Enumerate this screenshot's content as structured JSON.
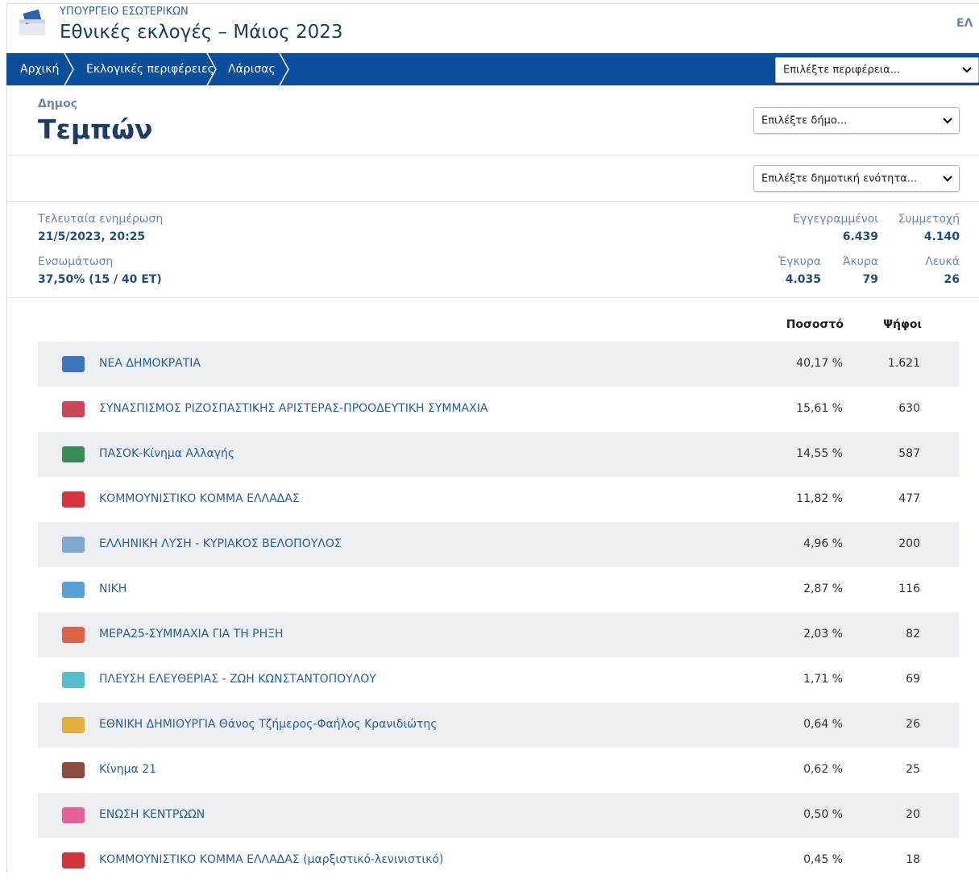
{
  "header": {
    "ministry": "ΥΠΟΥΡΓΕΙΟ ΕΣΩΤΕΡΙΚΩΝ",
    "title": "Εθνικές εκλογές – Μάιος 2023",
    "language": "ΕΛ"
  },
  "breadcrumbs": [
    "Αρχική",
    "Εκλογικές περιφέρειες",
    "Λάρισας"
  ],
  "region_select": "Επιλέξτε περιφέρεια...",
  "municipality": {
    "label": "Δημος",
    "name": "Τεμπών",
    "select": "Επιλέξτε δήμο...",
    "unit_select": "Επιλέξτε δημοτική ενότητα..."
  },
  "stats": {
    "last_update": {
      "label": "Τελευταία ενημέρωση",
      "value": "21/5/2023, 20:25"
    },
    "integration": {
      "label": "Ενσωμάτωση",
      "value": "37,50% (15 / 40 ΕΤ)"
    },
    "registered": {
      "label": "Εγγεγραμμένοι",
      "value": "6.439"
    },
    "turnout": {
      "label": "Συμμετοχή",
      "value": "4.140"
    },
    "valid": {
      "label": "Έγκυρα",
      "value": "4.035"
    },
    "invalid": {
      "label": "Άκυρα",
      "value": "79"
    },
    "blank": {
      "label": "Λευκά",
      "value": "26"
    }
  },
  "table": {
    "headers": [
      "Ποσοστό",
      "Ψήφοι"
    ],
    "rows": [
      [
        "ΝΕΑ ΔΗΜΟΚΡΑΤΙΑ",
        "40,17 %",
        "1.621"
      ],
      [
        "ΣΥΝΑΣΠΙΣΜΟΣ ΡΙΖΟΣΠΑΣΤΙΚΗΣ ΑΡΙΣΤΕΡΑΣ-ΠΡΟΟΔΕΥΤΙΚΗ ΣΥΜΜΑΧΙΑ",
        "15,61 %",
        "630"
      ],
      [
        "ΠΑΣΟΚ-Κίνημα Αλλαγής",
        "14,55 %",
        "587"
      ],
      [
        "ΚΟΜΜΟΥΝΙΣΤΙΚΟ ΚΟΜΜΑ ΕΛΛΑΔΑΣ",
        "11,82 %",
        "477"
      ],
      [
        "ΕΛΛΗΝΙΚΗ ΛΥΣΗ - ΚΥΡΙΑΚΟΣ ΒΕΛΟΠΟΥΛΟΣ",
        "4,96 %",
        "200"
      ],
      [
        "ΝΙΚΗ",
        "2,87 %",
        "116"
      ],
      [
        "ΜΕΡΑ25-ΣΥΜΜΑΧΙΑ ΓΙΑ ΤΗ ΡΗΞΗ",
        "2,03 %",
        "82"
      ],
      [
        "ΠΛΕΥΣΗ ΕΛΕΥΘΕΡΙΑΣ - ΖΩΗ ΚΩΝΣΤΑΝΤΟΠΟΥΛΟΥ",
        "1,71 %",
        "69"
      ],
      [
        "ΕΘΝΙΚΗ ΔΗΜΙΟΥΡΓΙΑ Θάνος Τζήμερος-Φαήλος Κρανιδιώτης",
        "0,64 %",
        "26"
      ],
      [
        "Κίνημα 21",
        "0,62 %",
        "25"
      ],
      [
        "ΕΝΩΣΗ ΚΕΝΤΡΩΩΝ",
        "0,50 %",
        "20"
      ],
      [
        "ΚΟΜΜΟΥΝΙΣΤΙΚΟ ΚΟΜΜΑ ΕΛΛΑΔΑΣ (μαρξιστικό-λενινιστικό)",
        "0,45 %",
        "18"
      ]
    ]
  }
}
